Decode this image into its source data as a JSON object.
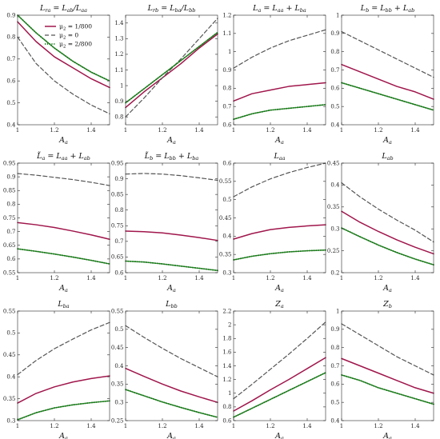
{
  "colors": {
    "mu_1_800": "#a0164b",
    "mu_0": "#555555",
    "mu_2_800": "#1a7a1a"
  },
  "legend": {
    "entries": [
      "μ2 = 1/800",
      "μ2 = 0",
      "μ2 = 2/800"
    ],
    "placement": "inside top of second subplot's left neighbour (top-left panel, upper right)"
  },
  "chart_data": [
    {
      "type": "line",
      "title": "Lra = Lab/Laa",
      "xlabel": "Aa",
      "xlim": [
        1,
        1.5
      ],
      "ylim": [
        0.4,
        0.9
      ],
      "yticks": [
        "0.4",
        "0.5",
        "0.6",
        "0.7",
        "0.8",
        "0.9"
      ],
      "xticks": [
        "1",
        "1.2",
        "1.4"
      ],
      "x": [
        1.0,
        1.1,
        1.2,
        1.3,
        1.4,
        1.5
      ],
      "series": [
        {
          "name": "μ2 = 1/800",
          "values": [
            0.87,
            0.78,
            0.71,
            0.66,
            0.61,
            0.57
          ]
        },
        {
          "name": "μ2 = 0",
          "values": [
            0.8,
            0.68,
            0.6,
            0.54,
            0.49,
            0.45
          ]
        },
        {
          "name": "μ2 = 2/800",
          "values": [
            0.9,
            0.82,
            0.75,
            0.69,
            0.64,
            0.6
          ]
        }
      ]
    },
    {
      "type": "line",
      "title": "Lrb = Lba/Lbb",
      "xlabel": "Aa",
      "xlim": [
        1,
        1.5
      ],
      "ylim": [
        0.75,
        1.45
      ],
      "yticks": [
        "0.8",
        "0.9",
        "1",
        "1.1",
        "1.2",
        "1.3",
        "1.4"
      ],
      "xticks": [
        "1",
        "1.2",
        "1.4"
      ],
      "x": [
        1.0,
        1.1,
        1.2,
        1.3,
        1.4,
        1.5
      ],
      "series": [
        {
          "name": "μ2 = 1/800",
          "values": [
            0.86,
            0.96,
            1.05,
            1.14,
            1.24,
            1.33
          ]
        },
        {
          "name": "μ2 = 0",
          "values": [
            0.8,
            0.92,
            1.05,
            1.17,
            1.3,
            1.43
          ]
        },
        {
          "name": "μ2 = 2/800",
          "values": [
            0.89,
            0.98,
            1.07,
            1.16,
            1.25,
            1.34
          ]
        }
      ]
    },
    {
      "type": "line",
      "title": "La = Laa + Lba",
      "xlabel": "Aa",
      "xlim": [
        1,
        1.5
      ],
      "ylim": [
        0.6,
        1.2
      ],
      "yticks": [
        "0.6",
        "0.7",
        "0.8",
        "0.9",
        "1",
        "1.1",
        "1.2"
      ],
      "xticks": [
        "1",
        "1.2",
        "1.4"
      ],
      "x": [
        1.0,
        1.1,
        1.2,
        1.3,
        1.4,
        1.5
      ],
      "series": [
        {
          "name": "μ2 = 1/800",
          "values": [
            0.73,
            0.77,
            0.79,
            0.81,
            0.82,
            0.83
          ]
        },
        {
          "name": "μ2 = 0",
          "values": [
            0.91,
            0.97,
            1.02,
            1.06,
            1.09,
            1.12
          ]
        },
        {
          "name": "μ2 = 2/800",
          "values": [
            0.63,
            0.66,
            0.68,
            0.69,
            0.7,
            0.71
          ]
        }
      ]
    },
    {
      "type": "line",
      "title": "Lb = Lbb + Lab",
      "xlabel": "Aa",
      "xlim": [
        1,
        1.5
      ],
      "ylim": [
        0.4,
        1.0
      ],
      "yticks": [
        "0.4",
        "0.5",
        "0.6",
        "0.7",
        "0.8",
        "0.9",
        "1"
      ],
      "xticks": [
        "1",
        "1.2",
        "1.4"
      ],
      "x": [
        1.0,
        1.1,
        1.2,
        1.3,
        1.4,
        1.5
      ],
      "series": [
        {
          "name": "μ2 = 1/800",
          "values": [
            0.73,
            0.69,
            0.65,
            0.61,
            0.58,
            0.54
          ]
        },
        {
          "name": "μ2 = 0",
          "values": [
            0.91,
            0.86,
            0.81,
            0.76,
            0.71,
            0.66
          ]
        },
        {
          "name": "μ2 = 2/800",
          "values": [
            0.63,
            0.6,
            0.57,
            0.54,
            0.51,
            0.48
          ]
        }
      ]
    },
    {
      "type": "line",
      "title": "L̃a = Laa + Lab",
      "xlabel": "Aa",
      "xlim": [
        1,
        1.5
      ],
      "ylim": [
        0.55,
        0.95
      ],
      "yticks": [
        "0.55",
        "0.6",
        "0.65",
        "0.7",
        "0.75",
        "0.8",
        "0.85",
        "0.9",
        "0.95"
      ],
      "xticks": [
        "1",
        "1.2",
        "1.4"
      ],
      "x": [
        1.0,
        1.1,
        1.2,
        1.3,
        1.4,
        1.5
      ],
      "series": [
        {
          "name": "μ2 = 1/800",
          "values": [
            0.733,
            0.725,
            0.715,
            0.702,
            0.688,
            0.672
          ]
        },
        {
          "name": "μ2 = 0",
          "values": [
            0.912,
            0.906,
            0.898,
            0.89,
            0.88,
            0.868
          ]
        },
        {
          "name": "μ2 = 2/800",
          "values": [
            0.637,
            0.628,
            0.618,
            0.607,
            0.595,
            0.582
          ]
        }
      ]
    },
    {
      "type": "line",
      "title": "L̃b = Lbb + Lba",
      "xlabel": "Aa",
      "xlim": [
        1,
        1.5
      ],
      "ylim": [
        0.6,
        0.95
      ],
      "yticks": [
        "0.6",
        "0.65",
        "0.7",
        "0.75",
        "0.8",
        "0.85",
        "0.9",
        "0.95"
      ],
      "xticks": [
        "1",
        "1.2",
        "1.4"
      ],
      "x": [
        1.0,
        1.1,
        1.2,
        1.3,
        1.4,
        1.5
      ],
      "series": [
        {
          "name": "μ2 = 1/800",
          "values": [
            0.733,
            0.731,
            0.727,
            0.72,
            0.712,
            0.703
          ]
        },
        {
          "name": "μ2 = 0",
          "values": [
            0.915,
            0.917,
            0.915,
            0.91,
            0.903,
            0.895
          ]
        },
        {
          "name": "μ2 = 2/800",
          "values": [
            0.637,
            0.634,
            0.628,
            0.621,
            0.614,
            0.607
          ]
        }
      ]
    },
    {
      "type": "line",
      "title": "Laa",
      "xlabel": "Aa",
      "xlim": [
        1,
        1.5
      ],
      "ylim": [
        0.3,
        0.6
      ],
      "yticks": [
        "0.3",
        "0.35",
        "0.4",
        "0.45",
        "0.5",
        "0.55",
        "0.6"
      ],
      "xticks": [
        "1",
        "1.2",
        "1.4"
      ],
      "x": [
        1.0,
        1.1,
        1.2,
        1.3,
        1.4,
        1.5
      ],
      "series": [
        {
          "name": "μ2 = 1/800",
          "values": [
            0.392,
            0.407,
            0.418,
            0.424,
            0.428,
            0.431
          ]
        },
        {
          "name": "μ2 = 0",
          "values": [
            0.508,
            0.535,
            0.557,
            0.574,
            0.588,
            0.6
          ]
        },
        {
          "name": "μ2 = 2/800",
          "values": [
            0.335,
            0.345,
            0.352,
            0.357,
            0.36,
            0.362
          ]
        }
      ]
    },
    {
      "type": "line",
      "title": "Lab",
      "xlabel": "Aa",
      "xlim": [
        1,
        1.5
      ],
      "ylim": [
        0.2,
        0.45
      ],
      "yticks": [
        "0.2",
        "0.25",
        "0.3",
        "0.35",
        "0.4",
        "0.45"
      ],
      "xticks": [
        "1",
        "1.2",
        "1.4"
      ],
      "x": [
        1.0,
        1.1,
        1.2,
        1.3,
        1.4,
        1.5
      ],
      "series": [
        {
          "name": "μ2 = 1/800",
          "values": [
            0.34,
            0.315,
            0.294,
            0.275,
            0.258,
            0.243
          ]
        },
        {
          "name": "μ2 = 0",
          "values": [
            0.405,
            0.373,
            0.345,
            0.32,
            0.297,
            0.27
          ]
        },
        {
          "name": "μ2 = 2/800",
          "values": [
            0.302,
            0.282,
            0.263,
            0.246,
            0.231,
            0.218
          ]
        }
      ]
    },
    {
      "type": "line",
      "title": "Lba",
      "xlabel": "Aa",
      "xlim": [
        1,
        1.5
      ],
      "ylim": [
        0.3,
        0.55
      ],
      "yticks": [
        "0.3",
        "0.35",
        "0.4",
        "0.45",
        "0.5",
        "0.55"
      ],
      "xticks": [
        "1",
        "1.2",
        "1.4"
      ],
      "x": [
        1.0,
        1.1,
        1.2,
        1.3,
        1.4,
        1.5
      ],
      "series": [
        {
          "name": "μ2 = 1/800",
          "values": [
            0.34,
            0.362,
            0.377,
            0.388,
            0.396,
            0.402
          ]
        },
        {
          "name": "μ2 = 0",
          "values": [
            0.405,
            0.437,
            0.464,
            0.486,
            0.507,
            0.524
          ]
        },
        {
          "name": "μ2 = 2/800",
          "values": [
            0.302,
            0.318,
            0.329,
            0.336,
            0.341,
            0.345
          ]
        }
      ]
    },
    {
      "type": "line",
      "title": "Lbb",
      "xlabel": "Aa",
      "xlim": [
        1,
        1.5
      ],
      "ylim": [
        0.25,
        0.55
      ],
      "yticks": [
        "0.25",
        "0.3",
        "0.35",
        "0.4",
        "0.45",
        "0.5",
        "0.55"
      ],
      "xticks": [
        "1",
        "1.2",
        "1.4"
      ],
      "x": [
        1.0,
        1.1,
        1.2,
        1.3,
        1.4,
        1.5
      ],
      "series": [
        {
          "name": "μ2 = 1/800",
          "values": [
            0.393,
            0.371,
            0.35,
            0.331,
            0.315,
            0.3
          ]
        },
        {
          "name": "μ2 = 0",
          "values": [
            0.51,
            0.478,
            0.448,
            0.42,
            0.395,
            0.37
          ]
        },
        {
          "name": "μ2 = 2/800",
          "values": [
            0.335,
            0.318,
            0.301,
            0.286,
            0.272,
            0.259
          ]
        }
      ]
    },
    {
      "type": "line",
      "title": "Za",
      "xlabel": "Aa",
      "xlim": [
        1,
        1.5
      ],
      "ylim": [
        0.6,
        2.2
      ],
      "yticks": [
        "0.6",
        "0.8",
        "1",
        "1.2",
        "1.4",
        "1.6",
        "1.8",
        "2",
        "2.2"
      ],
      "xticks": [
        "1",
        "1.2",
        "1.4"
      ],
      "x": [
        1.0,
        1.1,
        1.2,
        1.3,
        1.4,
        1.5
      ],
      "series": [
        {
          "name": "μ2 = 1/800",
          "values": [
            0.74,
            0.89,
            1.05,
            1.2,
            1.36,
            1.52
          ]
        },
        {
          "name": "μ2 = 0",
          "values": [
            0.92,
            1.13,
            1.35,
            1.57,
            1.8,
            2.04
          ]
        },
        {
          "name": "μ2 = 2/800",
          "values": [
            0.65,
            0.78,
            0.91,
            1.04,
            1.17,
            1.3
          ]
        }
      ]
    },
    {
      "type": "line",
      "title": "Zb",
      "xlabel": "Aa",
      "xlim": [
        1,
        1.5
      ],
      "ylim": [
        0.4,
        1.0
      ],
      "yticks": [
        "0.4",
        "0.5",
        "0.6",
        "0.7",
        "0.8",
        "0.9",
        "1"
      ],
      "xticks": [
        "1",
        "1.2",
        "1.4"
      ],
      "x": [
        1.0,
        1.1,
        1.2,
        1.3,
        1.4,
        1.5
      ],
      "series": [
        {
          "name": "μ2 = 1/800",
          "values": [
            0.74,
            0.7,
            0.66,
            0.62,
            0.58,
            0.55
          ]
        },
        {
          "name": "μ2 = 0",
          "values": [
            0.93,
            0.87,
            0.81,
            0.75,
            0.7,
            0.65
          ]
        },
        {
          "name": "μ2 = 2/800",
          "values": [
            0.65,
            0.62,
            0.58,
            0.55,
            0.52,
            0.49
          ]
        }
      ]
    }
  ]
}
